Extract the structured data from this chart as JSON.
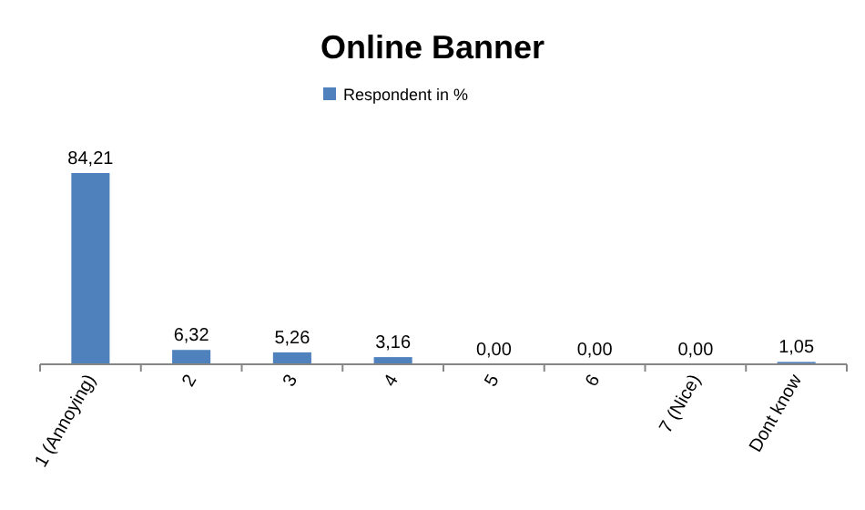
{
  "chart_data": {
    "type": "bar",
    "title": "Online Banner",
    "categories": [
      "1 (Annoying)",
      "2",
      "3",
      "4",
      "5",
      "6",
      "7 (Nice)",
      "Dont know"
    ],
    "series": [
      {
        "name": "Respondent in %",
        "color": "#4f81bd",
        "values": [
          84.21,
          6.32,
          5.26,
          3.16,
          0,
          0,
          0,
          1.05
        ],
        "value_labels": [
          "84,21",
          "6,32",
          "5,26",
          "3,16",
          "0,00",
          "0,00",
          "0,00",
          "1,05"
        ]
      }
    ],
    "legend": "top"
  }
}
